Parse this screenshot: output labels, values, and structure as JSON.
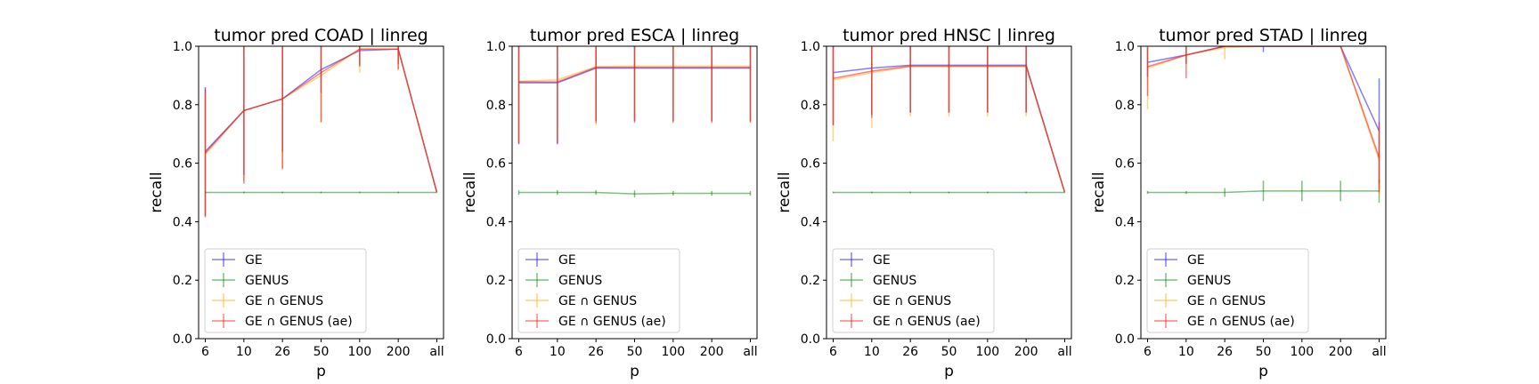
{
  "chart_data": [
    {
      "type": "line",
      "title": "tumor pred COAD | linreg",
      "xlabel": "p",
      "ylabel": "recall",
      "categories": [
        "6",
        "10",
        "26",
        "50",
        "100",
        "200",
        "all"
      ],
      "ylim": [
        0.0,
        1.0
      ],
      "yticks": [
        "0.0",
        "0.2",
        "0.4",
        "0.6",
        "0.8",
        "1.0"
      ],
      "legend_position": "lower-left",
      "series": [
        {
          "name": "GE",
          "color": "#0000ff",
          "values": [
            0.64,
            0.78,
            0.82,
            0.92,
            0.985,
            0.99,
            0.5
          ],
          "errors": [
            0.22,
            0.22,
            0.18,
            0.08,
            0.05,
            0.05,
            0.0
          ]
        },
        {
          "name": "GENUS",
          "color": "#008000",
          "values": [
            0.5,
            0.5,
            0.5,
            0.5,
            0.5,
            0.5,
            0.5
          ],
          "errors": [
            0.003,
            0.003,
            0.003,
            0.003,
            0.003,
            0.003,
            0.0
          ]
        },
        {
          "name": "GE ∩ GENUS",
          "color": "#ffa500",
          "values": [
            0.63,
            0.78,
            0.82,
            0.9,
            0.99,
            0.99,
            0.5
          ],
          "errors": [
            0.21,
            0.24,
            0.24,
            0.16,
            0.08,
            0.07,
            0.0
          ]
        },
        {
          "name": "GE ∩ GENUS (ae)",
          "color": "#ff0000",
          "values": [
            0.635,
            0.78,
            0.82,
            0.91,
            0.99,
            0.99,
            0.5
          ],
          "errors": [
            0.22,
            0.25,
            0.24,
            0.17,
            0.06,
            0.07,
            0.0
          ]
        }
      ]
    },
    {
      "type": "line",
      "title": "tumor pred ESCA | linreg",
      "xlabel": "p",
      "ylabel": "recall",
      "categories": [
        "6",
        "10",
        "26",
        "50",
        "100",
        "200",
        "all"
      ],
      "ylim": [
        0.0,
        1.0
      ],
      "yticks": [
        "0.0",
        "0.2",
        "0.4",
        "0.6",
        "0.8",
        "1.0"
      ],
      "legend_position": "lower-left",
      "series": [
        {
          "name": "GE",
          "color": "#0000ff",
          "values": [
            0.875,
            0.875,
            0.925,
            0.925,
            0.925,
            0.925,
            0.925
          ],
          "errors": [
            0.21,
            0.21,
            0.18,
            0.18,
            0.18,
            0.18,
            0.18
          ]
        },
        {
          "name": "GENUS",
          "color": "#008000",
          "values": [
            0.5,
            0.5,
            0.5,
            0.495,
            0.497,
            0.497,
            0.497
          ],
          "errors": [
            0.008,
            0.008,
            0.008,
            0.012,
            0.008,
            0.008,
            0.008
          ]
        },
        {
          "name": "GE ∩ GENUS",
          "color": "#ffa500",
          "values": [
            0.88,
            0.885,
            0.93,
            0.932,
            0.932,
            0.932,
            0.932
          ],
          "errors": [
            0.21,
            0.21,
            0.2,
            0.19,
            0.19,
            0.19,
            0.19
          ]
        },
        {
          "name": "GE ∩ GENUS (ae)",
          "color": "#ff0000",
          "values": [
            0.878,
            0.878,
            0.928,
            0.928,
            0.928,
            0.928,
            0.928
          ],
          "errors": [
            0.21,
            0.21,
            0.19,
            0.19,
            0.19,
            0.19,
            0.19
          ]
        }
      ]
    },
    {
      "type": "line",
      "title": "tumor pred HNSC | linreg",
      "xlabel": "p",
      "ylabel": "recall",
      "categories": [
        "6",
        "10",
        "26",
        "50",
        "100",
        "200",
        "all"
      ],
      "ylim": [
        0.0,
        1.0
      ],
      "yticks": [
        "0.0",
        "0.2",
        "0.4",
        "0.6",
        "0.8",
        "1.0"
      ],
      "legend_position": "lower-left",
      "series": [
        {
          "name": "GE",
          "color": "#0000ff",
          "values": [
            0.91,
            0.925,
            0.935,
            0.935,
            0.935,
            0.935,
            0.5
          ],
          "errors": [
            0.18,
            0.17,
            0.16,
            0.16,
            0.16,
            0.16,
            0.0
          ]
        },
        {
          "name": "GENUS",
          "color": "#008000",
          "values": [
            0.5,
            0.5,
            0.5,
            0.5,
            0.5,
            0.5,
            0.5
          ],
          "errors": [
            0.003,
            0.003,
            0.003,
            0.003,
            0.003,
            0.003,
            0.0
          ]
        },
        {
          "name": "GE ∩ GENUS",
          "color": "#ffa500",
          "values": [
            0.885,
            0.91,
            0.93,
            0.93,
            0.93,
            0.93,
            0.5
          ],
          "errors": [
            0.21,
            0.19,
            0.17,
            0.17,
            0.17,
            0.17,
            0.0
          ]
        },
        {
          "name": "GE ∩ GENUS (ae)",
          "color": "#ff0000",
          "values": [
            0.89,
            0.915,
            0.932,
            0.932,
            0.932,
            0.932,
            0.5
          ],
          "errors": [
            0.16,
            0.15,
            0.16,
            0.16,
            0.16,
            0.16,
            0.0
          ]
        }
      ]
    },
    {
      "type": "line",
      "title": "tumor pred STAD | linreg",
      "xlabel": "p",
      "ylabel": "recall",
      "categories": [
        "6",
        "10",
        "26",
        "50",
        "100",
        "200",
        "all"
      ],
      "ylim": [
        0.0,
        1.0
      ],
      "yticks": [
        "0.0",
        "0.2",
        "0.4",
        "0.6",
        "0.8",
        "1.0"
      ],
      "legend_position": "lower-left",
      "series": [
        {
          "name": "GE",
          "color": "#0000ff",
          "values": [
            0.945,
            0.97,
            1.0,
            1.0,
            1.0,
            1.0,
            0.71
          ],
          "errors": [
            0.05,
            0.03,
            0.0,
            0.02,
            0.0,
            0.0,
            0.18
          ]
        },
        {
          "name": "GENUS",
          "color": "#008000",
          "values": [
            0.5,
            0.5,
            0.5,
            0.505,
            0.505,
            0.505,
            0.505
          ],
          "errors": [
            0.005,
            0.005,
            0.015,
            0.035,
            0.035,
            0.035,
            0.04
          ]
        },
        {
          "name": "GE ∩ GENUS",
          "color": "#ffa500",
          "values": [
            0.925,
            0.97,
            0.995,
            1.0,
            1.0,
            1.0,
            0.61
          ],
          "errors": [
            0.14,
            0.03,
            0.04,
            0.0,
            0.0,
            0.0,
            0.12
          ]
        },
        {
          "name": "GE ∩ GENUS (ae)",
          "color": "#ff0000",
          "values": [
            0.93,
            0.97,
            1.0,
            1.0,
            1.0,
            1.0,
            0.62
          ],
          "errors": [
            0.1,
            0.08,
            0.0,
            0.0,
            0.0,
            0.0,
            0.12
          ]
        }
      ]
    }
  ]
}
